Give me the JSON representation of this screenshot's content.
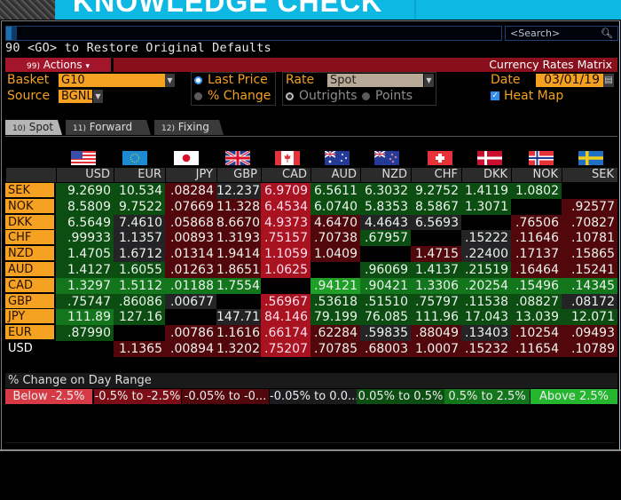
{
  "banner": {
    "title": "KNOWLEDGE CHECK"
  },
  "command_bar": {
    "value": "",
    "search_placeholder": "<Search>",
    "search_icon": "magnifier-icon"
  },
  "restore_hint": "90 <GO> to Restore Original Defaults",
  "toolbar": {
    "actions_num": "99)",
    "actions_label": "Actions",
    "actions_caret": "▾",
    "title": "Currency Rates Matrix"
  },
  "controls": {
    "basket_label": "Basket",
    "basket_value": "G10",
    "source_label": "Source",
    "source_value": "BGNL",
    "display_options": [
      {
        "label": "Last Price",
        "selected": true
      },
      {
        "label": "% Change",
        "selected": false
      }
    ],
    "rate_label": "Rate",
    "rate_value": "Spot",
    "rate_options": [
      {
        "label": "Outrights",
        "selected": true
      },
      {
        "label": "Points",
        "selected": false
      }
    ],
    "date_label": "Date",
    "date_value": "03/01/19",
    "heatmap_label": "Heat Map",
    "heatmap_checked": true
  },
  "tabs": [
    {
      "num": "10)",
      "label": "Spot",
      "active": true
    },
    {
      "num": "11)",
      "label": "Forward",
      "active": false
    },
    {
      "num": "12)",
      "label": "Fixing",
      "active": false
    }
  ],
  "matrix": {
    "columns": [
      "USD",
      "EUR",
      "JPY",
      "GBP",
      "CAD",
      "AUD",
      "NZD",
      "CHF",
      "DKK",
      "NOK",
      "SEK"
    ],
    "rows": [
      {
        "label": "SEK",
        "values": [
          "9.2690",
          "10.534",
          ".08284",
          "12.237",
          "6.9709",
          "6.5611",
          "6.3032",
          "9.2752",
          "1.4119",
          "1.0802",
          ""
        ],
        "heat": [
          "dg",
          "dg",
          "dr",
          "gr",
          "br",
          "dg",
          "dg",
          "dg",
          "dg",
          "dg",
          "bl"
        ]
      },
      {
        "label": "NOK",
        "values": [
          "8.5809",
          "9.7522",
          ".07669",
          "11.328",
          "6.4534",
          "6.0740",
          "5.8353",
          "8.5867",
          "1.3071",
          "",
          ".92577"
        ],
        "heat": [
          "dg",
          "dg",
          "dr",
          "dr",
          "br",
          "dg",
          "dg",
          "dg",
          "dg",
          "bl",
          "dr"
        ]
      },
      {
        "label": "DKK",
        "values": [
          "6.5649",
          "7.4610",
          ".05868",
          "8.6670",
          "4.9373",
          "4.6470",
          "4.4643",
          "6.5693",
          "",
          ".76506",
          ".70827"
        ],
        "heat": [
          "dg",
          "gr",
          "dr",
          "dr",
          "br",
          "dr",
          "gr",
          "gr",
          "bl",
          "dr",
          "dr"
        ]
      },
      {
        "label": "CHF",
        "values": [
          ".99933",
          "1.1357",
          ".00893",
          "1.3193",
          ".75157",
          ".70738",
          ".67957",
          "",
          ".15222",
          ".11646",
          ".10781"
        ],
        "heat": [
          "dg",
          "gr",
          "dr",
          "dr",
          "br",
          "dr",
          "dg",
          "bl",
          "gr",
          "dr",
          "dr"
        ]
      },
      {
        "label": "NZD",
        "values": [
          "1.4705",
          "1.6712",
          ".01314",
          "1.9414",
          "1.1059",
          "1.0409",
          "",
          "1.4715",
          ".22400",
          ".17137",
          ".15865"
        ],
        "heat": [
          "dg",
          "gr",
          "dr",
          "dr",
          "br",
          "dr",
          "bl",
          "dr",
          "gr",
          "dr",
          "dr"
        ]
      },
      {
        "label": "AUD",
        "values": [
          "1.4127",
          "1.6055",
          ".01263",
          "1.8651",
          "1.0625",
          "",
          ".96069",
          "1.4137",
          ".21519",
          ".16464",
          ".15241"
        ],
        "heat": [
          "dg",
          "dg",
          "dr",
          "dr",
          "br",
          "bl",
          "dg",
          "dg",
          "dg",
          "dr",
          "dr"
        ]
      },
      {
        "label": "CAD",
        "values": [
          "1.3297",
          "1.5112",
          ".01188",
          "1.7554",
          "",
          ".94121",
          ".90421",
          "1.3306",
          ".20254",
          ".15496",
          ".14345"
        ],
        "heat": [
          "mg",
          "mg",
          "mg",
          "mg",
          "bl",
          "bg",
          "mg",
          "mg",
          "mg",
          "mg",
          "mg"
        ]
      },
      {
        "label": "GBP",
        "values": [
          ".75747",
          ".86086",
          ".00677",
          "",
          ".56967",
          ".53618",
          ".51510",
          ".75797",
          ".11538",
          ".08827",
          ".08172"
        ],
        "heat": [
          "dg",
          "dg",
          "gr",
          "bl",
          "br",
          "dg",
          "dg",
          "dg",
          "dg",
          "dg",
          "gr"
        ]
      },
      {
        "label": "JPY",
        "values": [
          "111.89",
          "127.16",
          "",
          "147.71",
          "84.146",
          "79.199",
          "76.085",
          "111.96",
          "17.043",
          "13.039",
          "12.071"
        ],
        "heat": [
          "mg",
          "dg",
          "bl",
          "gr",
          "br",
          "dg",
          "dg",
          "dg",
          "dg",
          "dg",
          "dg"
        ]
      },
      {
        "label": "EUR",
        "values": [
          ".87990",
          "",
          ".00786",
          "1.1616",
          ".66174",
          ".62284",
          ".59835",
          ".88049",
          ".13403",
          ".10254",
          ".09493"
        ],
        "heat": [
          "dg",
          "bl",
          "dr",
          "dr",
          "br",
          "dr",
          "gr",
          "dr",
          "gr",
          "dr",
          "dr"
        ]
      },
      {
        "label": "USD",
        "values": [
          "",
          "1.1365",
          ".00894",
          "1.3202",
          ".75207",
          ".70785",
          ".68003",
          "1.0007",
          ".15232",
          ".11654",
          ".10789"
        ],
        "heat": [
          "bl",
          "dr",
          "dr",
          "dr",
          "br",
          "dr",
          "dr",
          "dr",
          "dr",
          "dr",
          "dr"
        ]
      }
    ]
  },
  "legend": {
    "title": "% Change on Day Range",
    "items": [
      {
        "label": "Below -2.5%",
        "color": "#d63a44"
      },
      {
        "label": "-0.5% to -2.5%",
        "color": "#7a0d15"
      },
      {
        "label": "-0.05% to -0...",
        "color": "#52070c"
      },
      {
        "label": "-0.05% to 0.0...",
        "color": "#1c1c1f"
      },
      {
        "label": "0.05% to 0.5%",
        "color": "#0c4d12"
      },
      {
        "label": "0.5% to 2.5%",
        "color": "#13751c"
      },
      {
        "label": "Above 2.5%",
        "color": "#25b52f"
      }
    ]
  },
  "colors": {
    "accent_orange": "#f5a223",
    "title_bar_red": "#8a0f1c",
    "banner_cyan": "#0db9e3"
  }
}
